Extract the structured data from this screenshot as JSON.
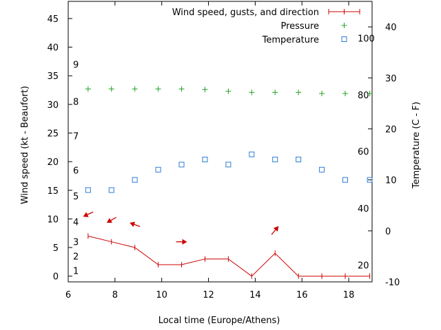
{
  "chart_data": {
    "type": "line",
    "xlabel": "Local time (Europe/Athens)",
    "ylabel_left": "Wind speed (kt - Beaufort)",
    "ylabel_right": "Temperature (C - F)",
    "xlim": [
      6,
      19
    ],
    "ylim_left": [
      -1,
      48
    ],
    "ylim_right": [
      -10,
      45
    ],
    "x_ticks": [
      6,
      8,
      10,
      12,
      14,
      16,
      18
    ],
    "y_left_ticks": [
      0,
      5,
      10,
      15,
      20,
      25,
      30,
      35,
      40,
      45
    ],
    "y_right_ticks": [
      -10,
      0,
      10,
      20,
      30,
      40
    ],
    "beaufort_labels": [
      {
        "label": "1",
        "kt": 1
      },
      {
        "label": "2",
        "kt": 3.5
      },
      {
        "label": "3",
        "kt": 6
      },
      {
        "label": "4",
        "kt": 9.5
      },
      {
        "label": "5",
        "kt": 14
      },
      {
        "label": "6",
        "kt": 18.5
      },
      {
        "label": "7",
        "kt": 24.5
      },
      {
        "label": "8",
        "kt": 30.5
      },
      {
        "label": "9",
        "kt": 37
      }
    ],
    "fahrenheit_labels": [
      {
        "label": "20",
        "c": -6.7
      },
      {
        "label": "40",
        "c": 4.4
      },
      {
        "label": "60",
        "c": 15.6
      },
      {
        "label": "80",
        "c": 26.7
      },
      {
        "label": "100",
        "c": 37.8
      }
    ],
    "legend": {
      "position": "top-right",
      "entries": [
        "Wind speed, gusts, and direction",
        "Pressure",
        "Temperature"
      ]
    },
    "series": [
      {
        "name": "Wind speed, gusts, and direction",
        "color": "#cc0000",
        "axis": "left",
        "x": [
          6.85,
          7.85,
          8.85,
          9.85,
          10.85,
          11.85,
          12.85,
          13.85,
          14.85,
          15.85,
          16.85,
          17.85,
          18.9
        ],
        "values": [
          7,
          6,
          5,
          2,
          2,
          3,
          3,
          0,
          4,
          0,
          0,
          0,
          0
        ]
      },
      {
        "name": "Pressure",
        "color": "#22a022",
        "axis": "left",
        "x": [
          6.85,
          7.85,
          8.85,
          9.85,
          10.85,
          11.85,
          12.85,
          13.85,
          14.85,
          15.85,
          16.85,
          17.85,
          18.9
        ],
        "values": [
          32.7,
          32.7,
          32.7,
          32.7,
          32.7,
          32.6,
          32.3,
          32.1,
          32.1,
          32.1,
          31.9,
          31.9,
          31.9
        ]
      },
      {
        "name": "Temperature",
        "color": "#2b7bd6",
        "axis": "right",
        "x": [
          6.85,
          7.85,
          8.85,
          9.85,
          10.85,
          11.85,
          12.85,
          13.85,
          14.85,
          15.85,
          16.85,
          17.85,
          18.9
        ],
        "values": [
          8,
          8,
          10,
          12,
          13,
          14,
          13,
          15,
          14,
          14,
          12,
          10,
          10
        ]
      }
    ],
    "wind_arrows": [
      {
        "x": 6.85,
        "y": 10.8,
        "angle": 155
      },
      {
        "x": 7.85,
        "y": 9.8,
        "angle": 150
      },
      {
        "x": 8.85,
        "y": 9.0,
        "angle": 200
      },
      {
        "x": 10.85,
        "y": 6.0,
        "angle": 0
      },
      {
        "x": 14.85,
        "y": 8.0,
        "angle": -50
      }
    ]
  }
}
